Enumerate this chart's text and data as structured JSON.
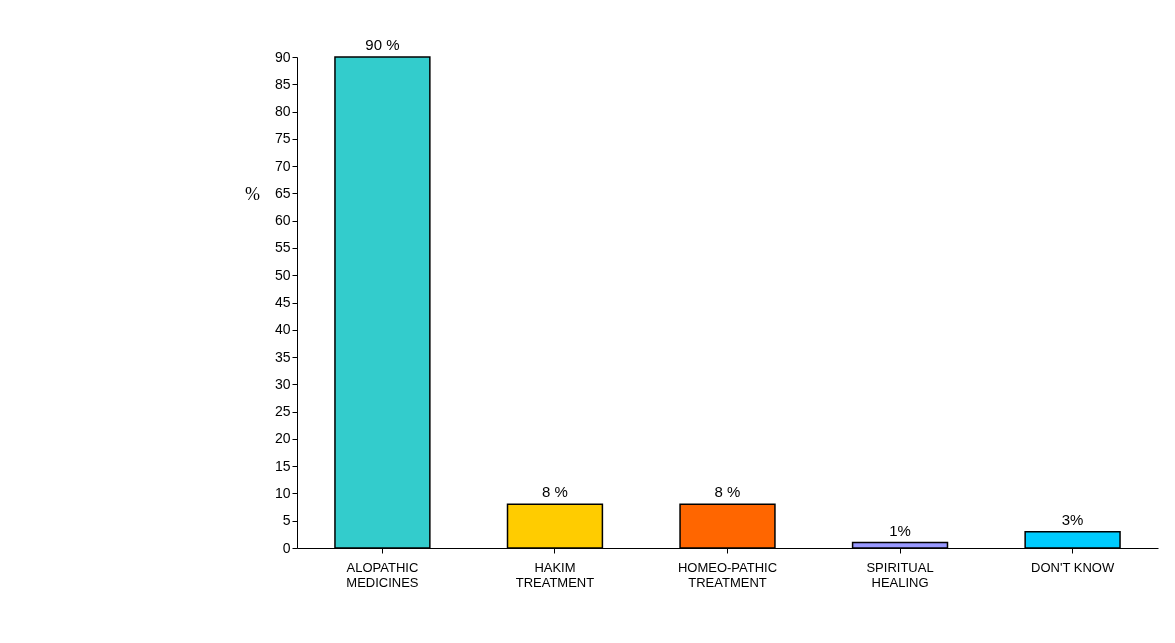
{
  "chart_data": {
    "type": "bar",
    "ylabel": "%",
    "categories": [
      "ALOPATHIC\nMEDICINES",
      "HAKIM\nTREATMENT",
      "HOMEO-PATHIC\nTREATMENT",
      "SPIRITUAL\nHEALING",
      "DON'T KNOW"
    ],
    "values": [
      90,
      8,
      8,
      1,
      3
    ],
    "colors": [
      "#33cccc",
      "#ffcc00",
      "#ff6600",
      "#9999ff",
      "#00ccff"
    ],
    "value_labels": [
      "90 %",
      "8 %",
      "8 %",
      "1%",
      "3%"
    ],
    "ylim": [
      0,
      90
    ],
    "yticks": [
      0,
      5,
      10,
      15,
      20,
      25,
      30,
      35,
      40,
      45,
      50,
      55,
      60,
      65,
      70,
      75,
      80,
      85,
      90
    ],
    "grid": false
  }
}
